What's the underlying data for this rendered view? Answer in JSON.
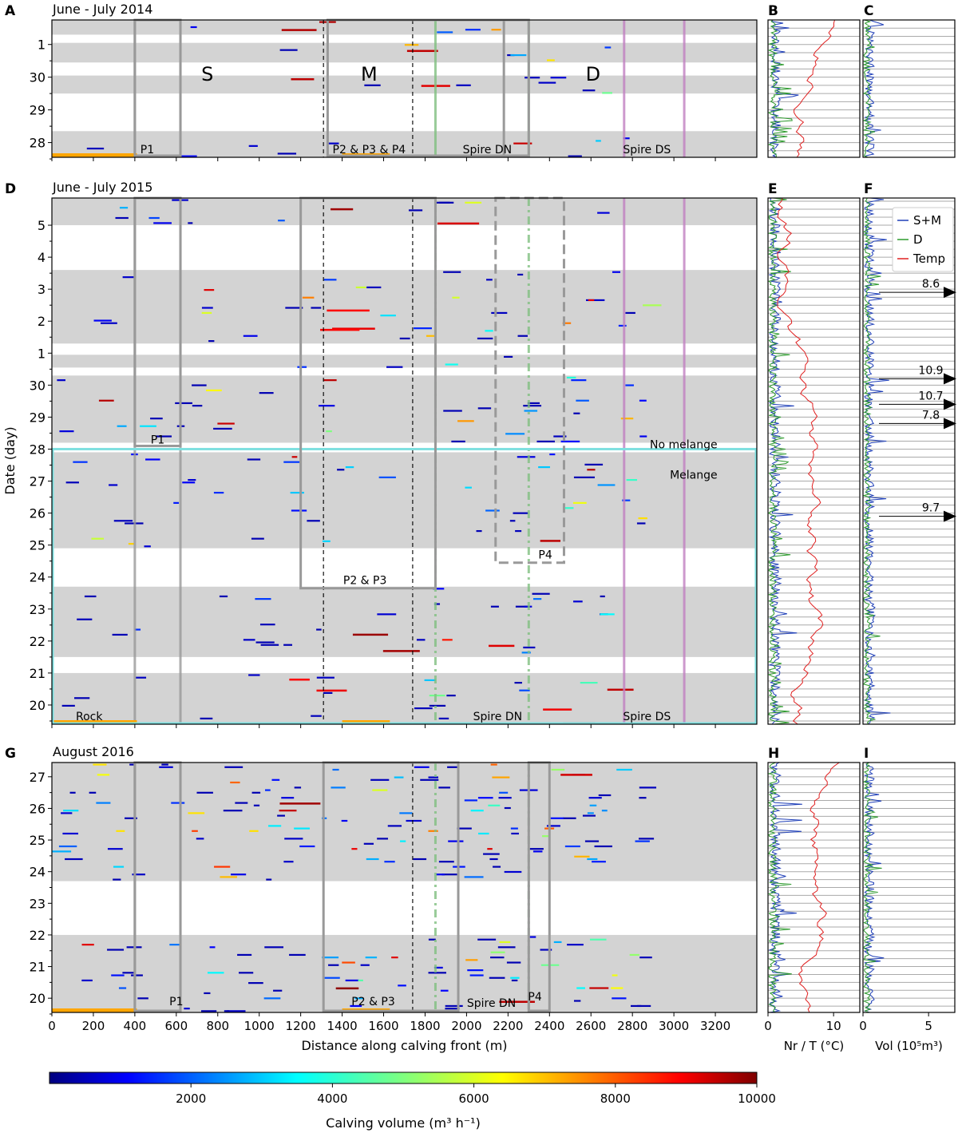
{
  "chart_data": {
    "type": "heatmap",
    "x_axis": {
      "label": "Distance along calving front (m)",
      "range": [
        0,
        3400
      ],
      "ticks": [
        0,
        200,
        400,
        600,
        800,
        1000,
        1200,
        1400,
        1600,
        1800,
        2000,
        2200,
        2400,
        2600,
        2800,
        3000,
        3200
      ]
    },
    "y_axis_label": "Date (day)",
    "colorbar": {
      "label": "Calving volume (m³ h⁻¹)",
      "range": [
        0,
        10000
      ],
      "ticks": [
        2000,
        4000,
        6000,
        8000,
        10000
      ],
      "colormap": "jet"
    },
    "legend": {
      "placement": "top-right of panel F",
      "entries": [
        {
          "name": "S+M",
          "color": "#1f3fb8"
        },
        {
          "name": "D",
          "color": "#2e9a2e"
        },
        {
          "name": "Temp",
          "color": "#e02020"
        }
      ]
    },
    "panels": [
      {
        "letter": "A",
        "title": "June - July 2014",
        "y_ticks": [
          {
            "label": "1",
            "t": 5
          },
          {
            "label": "30",
            "t": 4
          },
          {
            "label": "29",
            "t": 3
          },
          {
            "label": "28",
            "t": 2
          }
        ],
        "t_range": [
          1.55,
          5.75
        ],
        "gray_bands": [
          [
            1.55,
            2.35
          ],
          [
            3.5,
            4.05
          ],
          [
            4.45,
            5.05
          ],
          [
            5.3,
            5.75
          ]
        ],
        "zones": [
          {
            "label": "S",
            "x": 750
          },
          {
            "label": "M",
            "x": 1530
          },
          {
            "label": "D",
            "x": 2610
          }
        ],
        "region_labels": [
          {
            "text": "P1",
            "x": 460
          },
          {
            "text": "P2 & P3 & P4",
            "x": 1530
          },
          {
            "text": "Spire DN",
            "x": 2100
          },
          {
            "text": "Spire DS",
            "x": 2870
          }
        ]
      },
      {
        "letter": "D",
        "title": "June - July 2015",
        "y_ticks": [
          {
            "label": "5",
            "t": 5
          },
          {
            "label": "4",
            "t": 4
          },
          {
            "label": "3",
            "t": 3
          },
          {
            "label": "2",
            "t": 2
          },
          {
            "label": "1",
            "t": 1
          },
          {
            "label": "30",
            "t": 0
          },
          {
            "label": "29",
            "t": -1
          },
          {
            "label": "28",
            "t": -2
          },
          {
            "label": "27",
            "t": -3
          },
          {
            "label": "26",
            "t": -4
          },
          {
            "label": "25",
            "t": -5
          },
          {
            "label": "24",
            "t": -6
          },
          {
            "label": "23",
            "t": -7
          },
          {
            "label": "22",
            "t": -8
          },
          {
            "label": "21",
            "t": -9
          },
          {
            "label": "20",
            "t": -10
          }
        ],
        "t_range": [
          -10.6,
          5.85
        ],
        "gray_bands": [
          [
            -10.6,
            -9.0
          ],
          [
            -8.5,
            -6.3
          ],
          [
            -5.1,
            -2.1
          ],
          [
            -1.8,
            0.3
          ],
          [
            0.55,
            0.95
          ],
          [
            1.3,
            3.6
          ],
          [
            5.0,
            5.85
          ]
        ],
        "annotations": [
          {
            "text": "No melange",
            "x": 3210,
            "t": -1.85
          },
          {
            "text": "Melange",
            "x": 3210,
            "t": -2.8
          }
        ],
        "region_labels": [
          {
            "text": "P1",
            "x": 510
          },
          {
            "text": "P2 & P3",
            "x": 1510
          },
          {
            "text": "P4",
            "x": 2380
          },
          {
            "text": "Rock",
            "x": 180
          },
          {
            "text": "Spire DN",
            "x": 2150
          },
          {
            "text": "Spire DS",
            "x": 2870
          }
        ],
        "volume_peaks": [
          "8.6",
          "10.9",
          "10.7",
          "7.8",
          "9.7"
        ]
      },
      {
        "letter": "G",
        "title": "August 2016",
        "y_ticks": [
          {
            "label": "27",
            "t": 27
          },
          {
            "label": "26",
            "t": 26
          },
          {
            "label": "25",
            "t": 25
          },
          {
            "label": "24",
            "t": 24
          },
          {
            "label": "23",
            "t": 23
          },
          {
            "label": "22",
            "t": 22
          },
          {
            "label": "21",
            "t": 21
          },
          {
            "label": "20",
            "t": 20
          }
        ],
        "t_range": [
          19.55,
          27.45
        ],
        "gray_bands": [
          [
            19.55,
            22.0
          ],
          [
            23.7,
            27.45
          ]
        ],
        "region_labels": [
          {
            "text": "P1",
            "x": 600
          },
          {
            "text": "P2 & P3",
            "x": 1550
          },
          {
            "text": "Spire DN",
            "x": 2120
          },
          {
            "text": "P4",
            "x": 2330
          }
        ]
      }
    ],
    "side_panels": {
      "left_letters": [
        "B",
        "E",
        "H"
      ],
      "right_letters": [
        "C",
        "F",
        "I"
      ],
      "nr_temp": {
        "label": "Nr / T (°C)",
        "ticks": [
          0,
          10
        ],
        "range": [
          0,
          14
        ]
      },
      "volume": {
        "label": "Vol (10⁵m³)",
        "ticks": [
          0,
          5
        ],
        "range": [
          0,
          7
        ]
      }
    }
  }
}
